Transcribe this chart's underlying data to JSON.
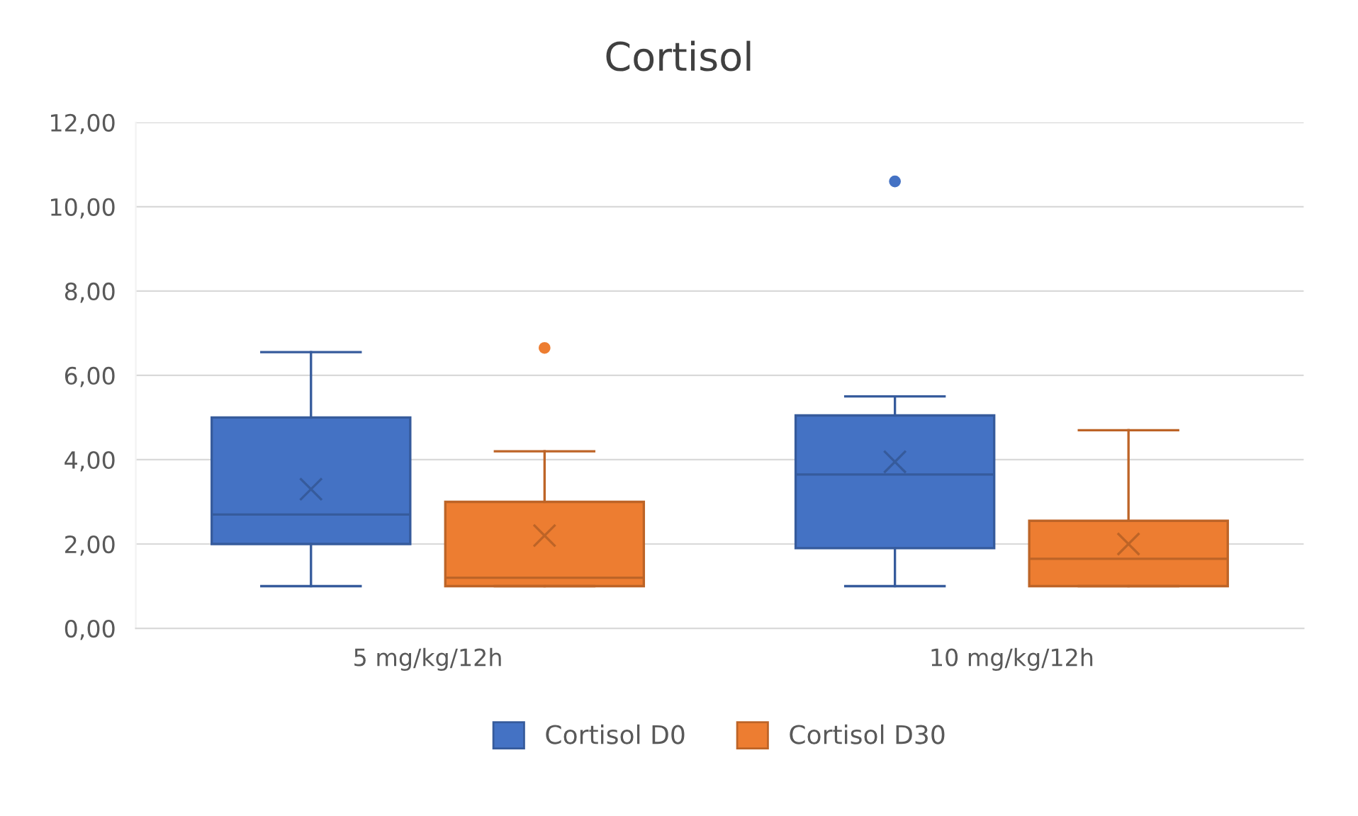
{
  "chart_data": {
    "type": "box",
    "title": "Cortisol",
    "categories": [
      "5 mg/kg/12h",
      "10 mg/kg/12h"
    ],
    "series": [
      {
        "name": "Cortisol D0",
        "color": "#4472c4",
        "boxes": [
          {
            "low": 1.0,
            "q1": 2.0,
            "median": 2.7,
            "q3": 5.0,
            "high": 6.55,
            "mean": 3.3
          },
          {
            "low": 1.0,
            "q1": 1.9,
            "median": 3.65,
            "q3": 5.05,
            "high": 5.5,
            "mean": 3.95,
            "outliers": [
              10.6
            ]
          }
        ]
      },
      {
        "name": "Cortisol D30",
        "color": "#ed7d31",
        "boxes": [
          {
            "low": 1.0,
            "q1": 1.0,
            "median": 1.2,
            "q3": 3.0,
            "high": 4.2,
            "mean": 2.2,
            "outliers": [
              6.65
            ]
          },
          {
            "low": 1.0,
            "q1": 1.0,
            "median": 1.65,
            "q3": 2.55,
            "high": 4.7,
            "mean": 2.0
          }
        ]
      }
    ],
    "ylim": [
      0,
      12
    ],
    "yticks": [
      {
        "value": 0,
        "label": "0,00"
      },
      {
        "value": 2,
        "label": "2,00"
      },
      {
        "value": 4,
        "label": "4,00"
      },
      {
        "value": 6,
        "label": "6,00"
      },
      {
        "value": 8,
        "label": "8,00"
      },
      {
        "value": 10,
        "label": "10,00"
      },
      {
        "value": 12,
        "label": "12,00"
      }
    ],
    "grid": "y",
    "legend": "bottom"
  }
}
